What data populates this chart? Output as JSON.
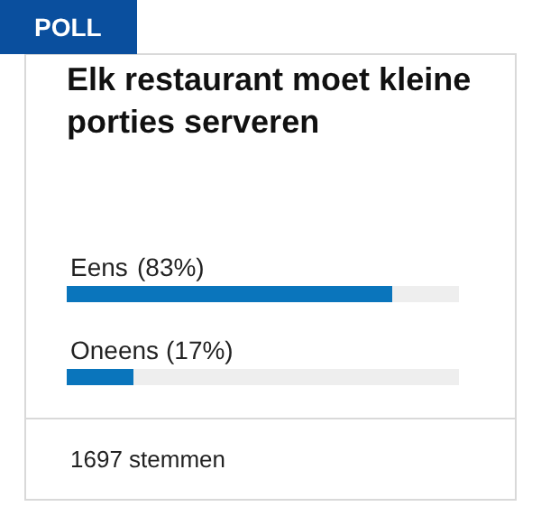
{
  "chart_data": {
    "type": "bar",
    "orientation": "horizontal",
    "stacked": true,
    "title": "Elk restaurant moet kleine porties serveren",
    "categories": [
      "Eens",
      "Oneens"
    ],
    "series": [
      {
        "color": "#0a75bc",
        "values": [
          83,
          17
        ],
        "value_labels": [
          "(83%)",
          "(17%)"
        ]
      },
      {
        "color": "#eeeeee",
        "values": [
          17,
          83
        ]
      }
    ],
    "annotations": [
      "POLL",
      "1697 stemmen"
    ],
    "tick_labels": false
  }
}
